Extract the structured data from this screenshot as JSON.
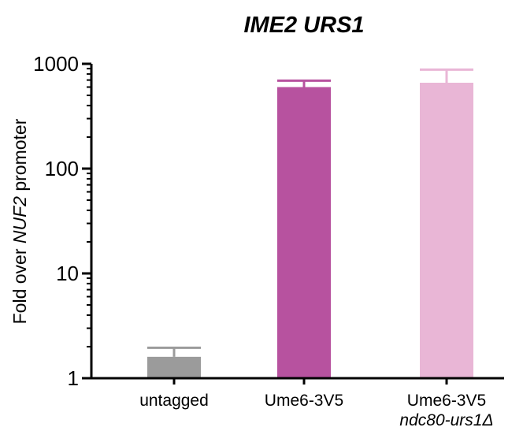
{
  "chart_data": {
    "type": "bar",
    "title": "IME2 URS1",
    "ylabel": {
      "before": "Fold over ",
      "gene": "NUF2",
      "after": " promoter"
    },
    "yscale": "log",
    "ylim": [
      1,
      1000
    ],
    "yticks": [
      "1",
      "10",
      "100",
      "1000"
    ],
    "categories": [
      {
        "line1": "untagged",
        "line2": ""
      },
      {
        "line1": "Ume6-3V5",
        "line2": ""
      },
      {
        "line1": "Ume6-3V5",
        "line2": "ndc80-urs1Δ"
      }
    ],
    "values": [
      1.6,
      600,
      660
    ],
    "error_upper": [
      1.95,
      690,
      880
    ],
    "colors": [
      "#9b9b9b",
      "#b7529f",
      "#e9b6d6"
    ]
  }
}
